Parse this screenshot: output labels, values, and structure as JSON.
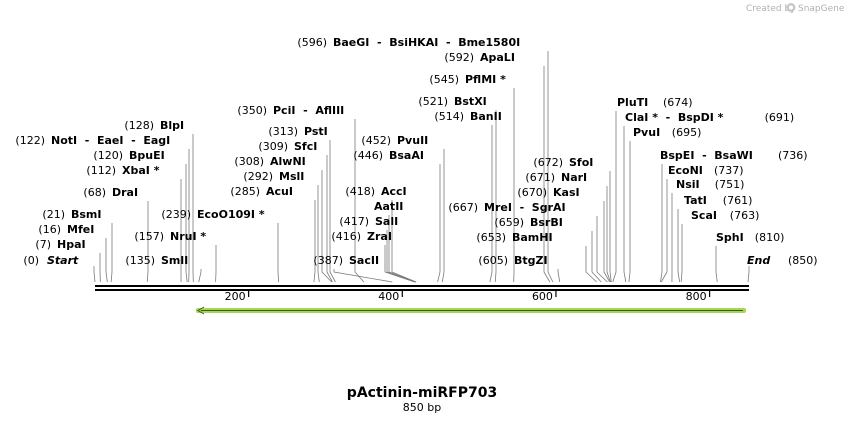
{
  "credit": {
    "prefix": "Created by",
    "brand": "SnapGene"
  },
  "plasmid": {
    "name": "pActinin-miRFP703",
    "length_label": "850 bp",
    "length": 850
  },
  "colors": {
    "backbone": "#000000",
    "feature": "#a8d65a",
    "feature_arrow": "#3a5a10",
    "pin": "#7a7a7a"
  },
  "ticks": [
    200,
    400,
    600,
    800
  ],
  "endpoints": [
    {
      "pos_text": "(0)",
      "name": "Start",
      "site": 0
    },
    {
      "pos_text": "(850)",
      "name": "End",
      "site": 850
    }
  ],
  "sites": [
    {
      "pos_text": "(596)",
      "name": "BaeGI  -  BsiHKAI  -  Bme1580I",
      "site": 596
    },
    {
      "pos_text": "(592)",
      "name": "ApaLI",
      "site": 592
    },
    {
      "pos_text": "(545)",
      "name": "PflMI *",
      "site": 545
    },
    {
      "pos_text": "(521)",
      "name": "BstXI",
      "site": 521
    },
    {
      "pos_text": "(514)",
      "name": "BanII",
      "site": 514
    },
    {
      "pos_text": "(350)",
      "name": "PciI  -  AflIII",
      "site": 350
    },
    {
      "pos_text": "(313)",
      "name": "PstI",
      "site": 313
    },
    {
      "pos_text": "(309)",
      "name": "SfcI",
      "site": 309
    },
    {
      "pos_text": "(308)",
      "name": "AlwNI",
      "site": 308
    },
    {
      "pos_text": "(292)",
      "name": "MslI",
      "site": 292
    },
    {
      "pos_text": "(285)",
      "name": "AcuI",
      "site": 285
    },
    {
      "pos_text": "(452)",
      "name": "PvuII",
      "site": 452
    },
    {
      "pos_text": "(446)",
      "name": "BsaAI",
      "site": 446
    },
    {
      "pos_text": "(418)",
      "name": "AccI",
      "site": 418
    },
    {
      "pos_text": "",
      "name": "AatII",
      "site": 418
    },
    {
      "pos_text": "(417)",
      "name": "SalI",
      "site": 417
    },
    {
      "pos_text": "(416)",
      "name": "ZraI",
      "site": 416
    },
    {
      "pos_text": "(387)",
      "name": "SacII",
      "site": 387
    },
    {
      "pos_text": "(128)",
      "name": "BlpI",
      "site": 128
    },
    {
      "pos_text": "(122)",
      "name": "NotI  -  EaeI  -  EagI",
      "site": 122
    },
    {
      "pos_text": "(120)",
      "name": "BpuEI",
      "site": 120
    },
    {
      "pos_text": "(112)",
      "name": "XbaI *",
      "site": 112
    },
    {
      "pos_text": "(68)",
      "name": "DraI",
      "site": 68
    },
    {
      "pos_text": "(239)",
      "name": "EcoO109I *",
      "site": 239
    },
    {
      "pos_text": "(21)",
      "name": "BsmI",
      "site": 21
    },
    {
      "pos_text": "(16)",
      "name": "MfeI",
      "site": 16
    },
    {
      "pos_text": "(157)",
      "name": "NruI *",
      "site": 157
    },
    {
      "pos_text": "(7)",
      "name": "HpaI",
      "site": 7
    },
    {
      "pos_text": "(135)",
      "name": "SmlI",
      "site": 135
    },
    {
      "pos_text": "(674)",
      "name": "PluTI",
      "site": 674
    },
    {
      "pos_text": "(691)",
      "name": "ClaI *  -  BspDI *",
      "site": 691
    },
    {
      "pos_text": "(695)",
      "name": "PvuI",
      "site": 695
    },
    {
      "pos_text": "(736)",
      "name": "BspEI  -  BsaWI",
      "site": 736
    },
    {
      "pos_text": "(737)",
      "name": "EcoNI",
      "site": 737
    },
    {
      "pos_text": "(751)",
      "name": "NsiI",
      "site": 751
    },
    {
      "pos_text": "(761)",
      "name": "TatI",
      "site": 761
    },
    {
      "pos_text": "(763)",
      "name": "ScaI",
      "site": 763
    },
    {
      "pos_text": "(810)",
      "name": "SphI",
      "site": 810
    },
    {
      "pos_text": "(672)",
      "name": "SfoI",
      "site": 672
    },
    {
      "pos_text": "(671)",
      "name": "NarI",
      "site": 671
    },
    {
      "pos_text": "(670)",
      "name": "KasI",
      "site": 670
    },
    {
      "pos_text": "(667)",
      "name": "MreI  -  SgrAI",
      "site": 667
    },
    {
      "pos_text": "(659)",
      "name": "BsrBI",
      "site": 659
    },
    {
      "pos_text": "(653)",
      "name": "BamHI",
      "site": 653
    },
    {
      "pos_text": "(605)",
      "name": "BtgZI",
      "site": 605
    }
  ]
}
